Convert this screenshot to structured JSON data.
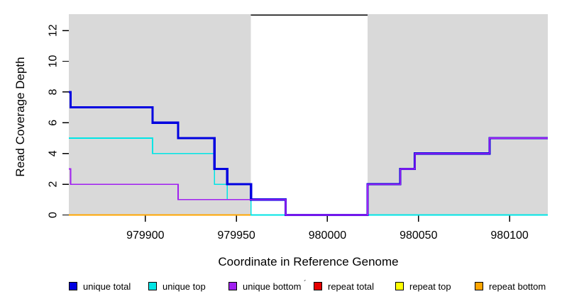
{
  "chart_data": {
    "type": "line",
    "subtype": "step-coverage-plot",
    "title": "",
    "xlabel": "Coordinate in Reference Genome",
    "ylabel": "Read Coverage Depth",
    "xlim": [
      979858,
      980121
    ],
    "ylim": [
      0,
      13
    ],
    "xticks": [
      979900,
      979950,
      980000,
      980050,
      980100
    ],
    "yticks": [
      0,
      2,
      4,
      6,
      8,
      10,
      12
    ],
    "grid": "off",
    "panel_bg": "#d9d9d9",
    "highlight_region": {
      "start": 979958,
      "end": 980022,
      "fill": "#ffffff",
      "top_line_value": 13,
      "top_line_color": "#000000"
    },
    "series": [
      {
        "name": "repeat total",
        "color": "#e60000",
        "width": 1.5,
        "steps": [
          [
            979858,
            0
          ],
          [
            980121,
            0
          ]
        ]
      },
      {
        "name": "repeat top",
        "color": "#ffff00",
        "width": 1.5,
        "steps": [
          [
            979858,
            0
          ],
          [
            980121,
            0
          ]
        ]
      },
      {
        "name": "repeat bottom",
        "color": "#ffa500",
        "width": 1.8,
        "steps": [
          [
            979858,
            0
          ],
          [
            980121,
            0
          ]
        ]
      },
      {
        "name": "unique top",
        "color": "#00e5e5",
        "width": 1.7,
        "steps": [
          [
            979858,
            5
          ],
          [
            979904,
            4
          ],
          [
            979938,
            2
          ],
          [
            979945,
            1
          ],
          [
            979958,
            0
          ],
          [
            980121,
            0
          ]
        ]
      },
      {
        "name": "unique total",
        "color": "#0000e0",
        "width": 3.2,
        "steps": [
          [
            979858,
            8
          ],
          [
            979859,
            7
          ],
          [
            979904,
            6
          ],
          [
            979918,
            5
          ],
          [
            979938,
            3
          ],
          [
            979945,
            2
          ],
          [
            979958,
            1
          ],
          [
            979977,
            0
          ],
          [
            980022,
            2
          ],
          [
            980040,
            3
          ],
          [
            980048,
            4
          ],
          [
            980089,
            5
          ],
          [
            980121,
            5
          ]
        ]
      },
      {
        "name": "unique bottom",
        "color": "#a020f0",
        "width": 1.7,
        "steps": [
          [
            979858,
            3
          ],
          [
            979859,
            2
          ],
          [
            979918,
            1
          ],
          [
            979977,
            0
          ],
          [
            980022,
            2
          ],
          [
            980040,
            3
          ],
          [
            980048,
            4
          ],
          [
            980089,
            5
          ],
          [
            980121,
            5
          ]
        ]
      }
    ],
    "legend_position": "bottom",
    "legend": [
      {
        "label": "unique total",
        "color": "#0000e0"
      },
      {
        "label": "unique top",
        "color": "#00e5e5"
      },
      {
        "label": "unique bottom",
        "color": "#a020f0"
      },
      {
        "label": "repeat total",
        "color": "#e60000"
      },
      {
        "label": "repeat top",
        "color": "#ffff00"
      },
      {
        "label": "repeat bottom",
        "color": "#ffa500"
      }
    ],
    "stray_mark": "´"
  }
}
